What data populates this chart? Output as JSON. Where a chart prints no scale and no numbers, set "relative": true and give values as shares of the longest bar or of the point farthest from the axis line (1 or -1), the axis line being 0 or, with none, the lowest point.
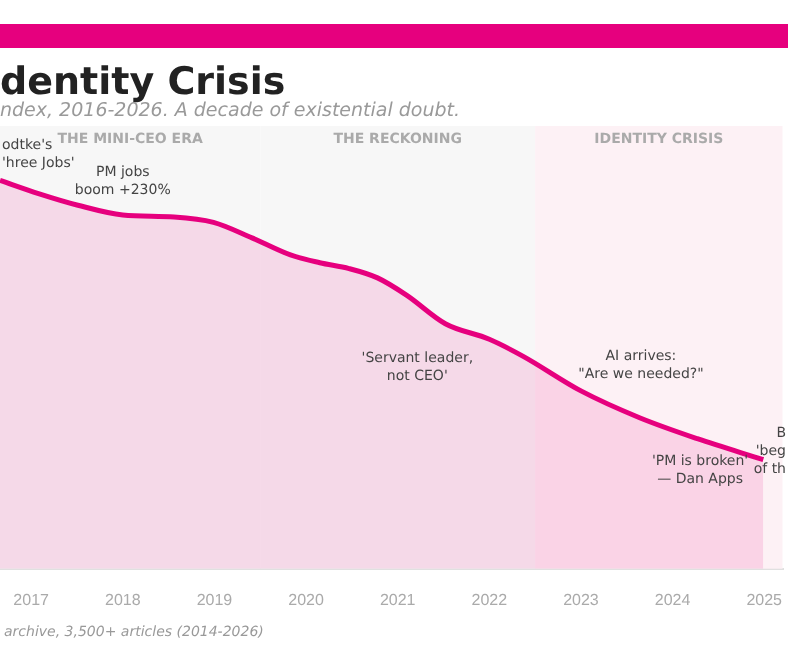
{
  "chart_data": {
    "type": "area",
    "title": "dentity Crisis",
    "subtitle": "ndex, 2016-2026. A decade of existential doubt.",
    "relative": true,
    "x": [
      2016.66,
      2017.08,
      2017.51,
      2018.0,
      2018.56,
      2018.99,
      2019.41,
      2019.83,
      2020.15,
      2020.47,
      2020.78,
      2021.1,
      2021.52,
      2022.0,
      2022.37,
      2023.0,
      2023.64,
      2024.27,
      2024.99
    ],
    "series": [
      {
        "color": "#e6007e",
        "values": [
          1,
          0.966,
          0.936,
          0.911,
          0.906,
          0.892,
          0.852,
          0.808,
          0.788,
          0.773,
          0.749,
          0.704,
          0.631,
          0.591,
          0.547,
          0.458,
          0.389,
          0.335,
          0.281
        ]
      }
    ],
    "xlim": [
      2016.66,
      2025.2
    ],
    "xticks": [
      2017,
      2018,
      2019,
      2020,
      2021,
      2022,
      2023,
      2024,
      2025
    ],
    "bands": [
      {
        "axis": "x",
        "from": 2016.66,
        "to": 2019.5,
        "label": "THE MINI-CEO ERA",
        "color": "#f7f7f7"
      },
      {
        "axis": "x",
        "from": 2019.5,
        "to": 2022.5,
        "label": "THE RECKONING",
        "color": "#f7f7f7"
      },
      {
        "axis": "x",
        "from": 2022.5,
        "to": 2025.2,
        "label": "IDENTITY CRISIS",
        "color": "#fdf1f5"
      }
    ],
    "annotations": [
      {
        "text": "odtke's\n'hree Jobs'",
        "x": 2016.66,
        "y": 1
      },
      {
        "text": "PM jobs\nboom +230%",
        "x": 2018.0,
        "y": 0.911
      },
      {
        "text": "'Servant leader,\nnot CEO'",
        "x": 2022.0,
        "y": 0.591
      },
      {
        "text": "AI arrives:\n\"Are we needed?\"",
        "x": 2023.0,
        "y": 0.458
      },
      {
        "text": "'PM is broken'\n— Dan Apps",
        "x": 2024.3,
        "y": 0.335
      },
      {
        "text": "B\n'beg\nof th",
        "x": 2024.99,
        "y": 0.281
      },
      "archive, 3,500+ articles (2014-2026)"
    ],
    "legend": false
  }
}
